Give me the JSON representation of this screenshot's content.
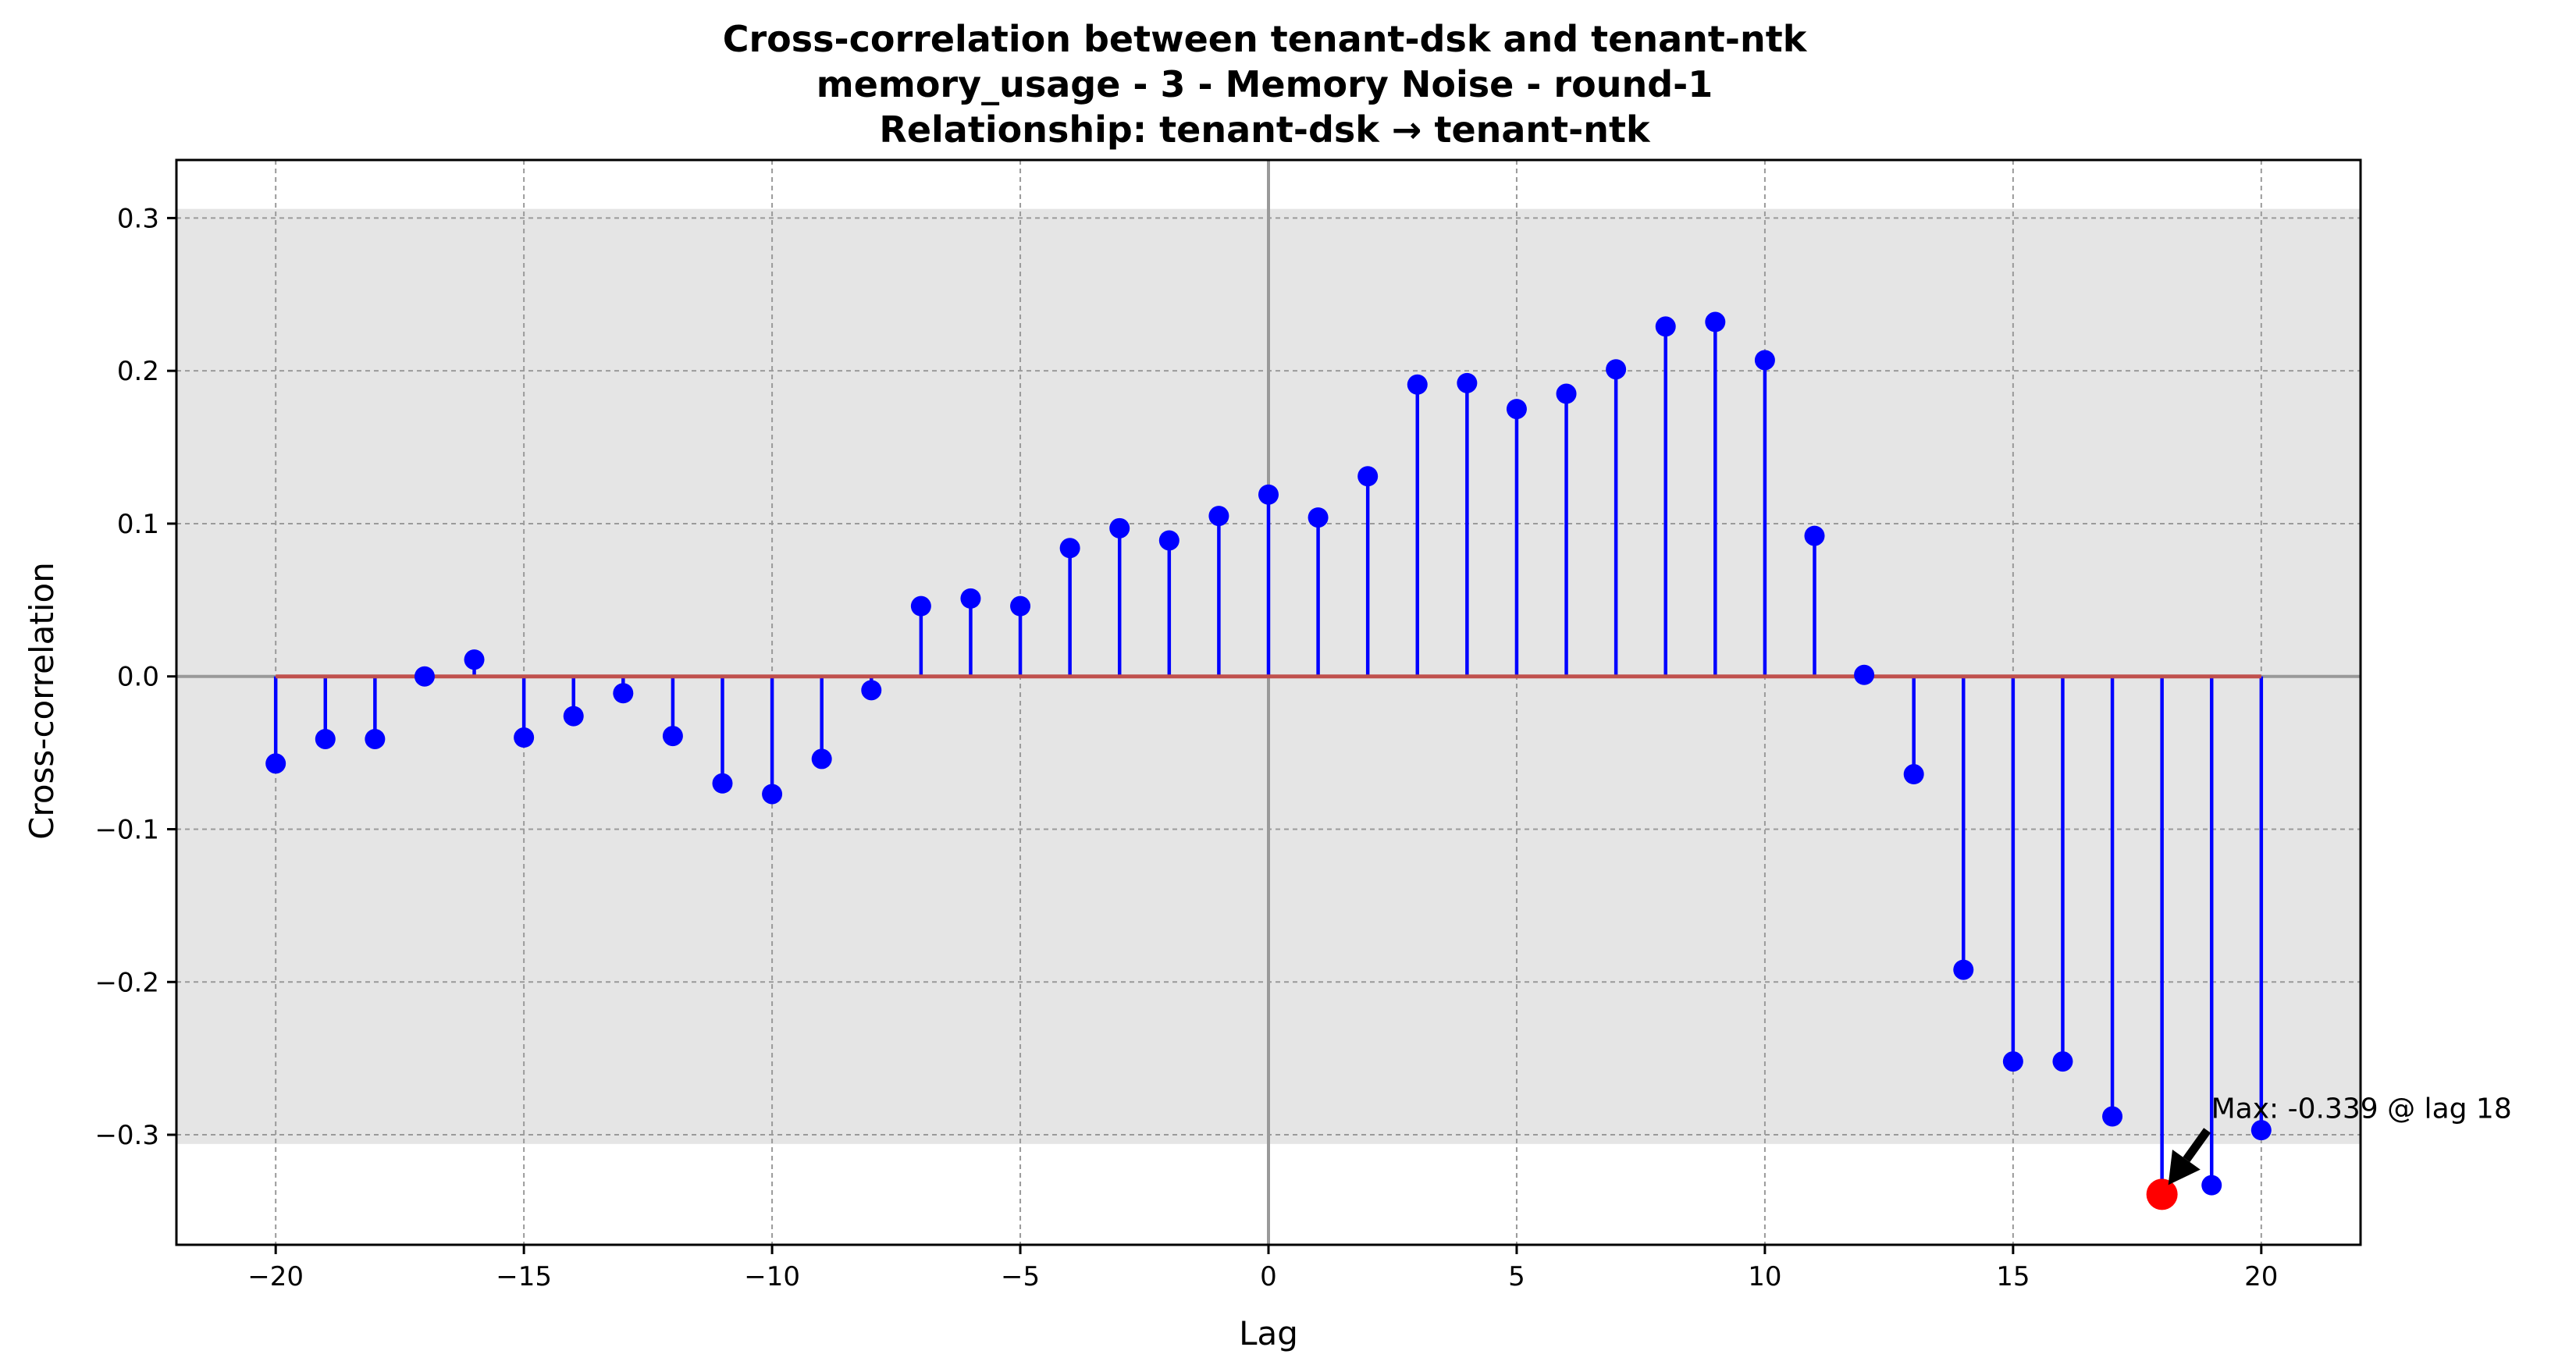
{
  "chart_data": {
    "type": "stem",
    "title_lines": [
      "Cross-correlation between tenant-dsk and tenant-ntk",
      "memory_usage - 3 - Memory Noise - round-1",
      "Relationship: tenant-dsk → tenant-ntk"
    ],
    "xlabel": "Lag",
    "ylabel": "Cross-correlation",
    "xlim": [
      -22,
      22
    ],
    "ylim": [
      -0.372,
      0.338
    ],
    "xticks": [
      -20,
      -15,
      -10,
      -5,
      0,
      5,
      10,
      15,
      20
    ],
    "xtick_labels": [
      "−20",
      "−15",
      "−10",
      "−5",
      "0",
      "5",
      "10",
      "15",
      "20"
    ],
    "yticks": [
      -0.3,
      -0.2,
      -0.1,
      0.0,
      0.1,
      0.2,
      0.3
    ],
    "ytick_labels": [
      "−0.3",
      "−0.2",
      "−0.1",
      "0.0",
      "0.1",
      "0.2",
      "0.3"
    ],
    "grid": true,
    "confidence_band": [
      -0.306,
      0.306
    ],
    "x": [
      -20,
      -19,
      -18,
      -17,
      -16,
      -15,
      -14,
      -13,
      -12,
      -11,
      -10,
      -9,
      -8,
      -7,
      -6,
      -5,
      -4,
      -3,
      -2,
      -1,
      0,
      1,
      2,
      3,
      4,
      5,
      6,
      7,
      8,
      9,
      10,
      11,
      12,
      13,
      14,
      15,
      16,
      17,
      18,
      19,
      20
    ],
    "values": [
      -0.057,
      -0.041,
      -0.041,
      0.0,
      0.011,
      -0.04,
      -0.026,
      -0.011,
      -0.039,
      -0.07,
      -0.077,
      -0.054,
      -0.009,
      0.046,
      0.051,
      0.046,
      0.084,
      0.097,
      0.089,
      0.105,
      0.119,
      0.104,
      0.131,
      0.191,
      0.192,
      0.175,
      0.185,
      0.201,
      0.229,
      0.232,
      0.207,
      0.092,
      0.001,
      -0.064,
      -0.192,
      -0.252,
      -0.252,
      -0.288,
      -0.339,
      -0.333,
      -0.297
    ],
    "max_point": {
      "x": 18,
      "y": -0.339
    },
    "annotation": "Max: -0.339 @ lag 18",
    "colors": {
      "stem": "#0000ff",
      "marker": "#0000ff",
      "baseline": "#c0504d",
      "max_marker": "#ff0000",
      "band": "#e5e5e5",
      "grid": "#9a9a9a",
      "zero_line": "#999999"
    }
  }
}
